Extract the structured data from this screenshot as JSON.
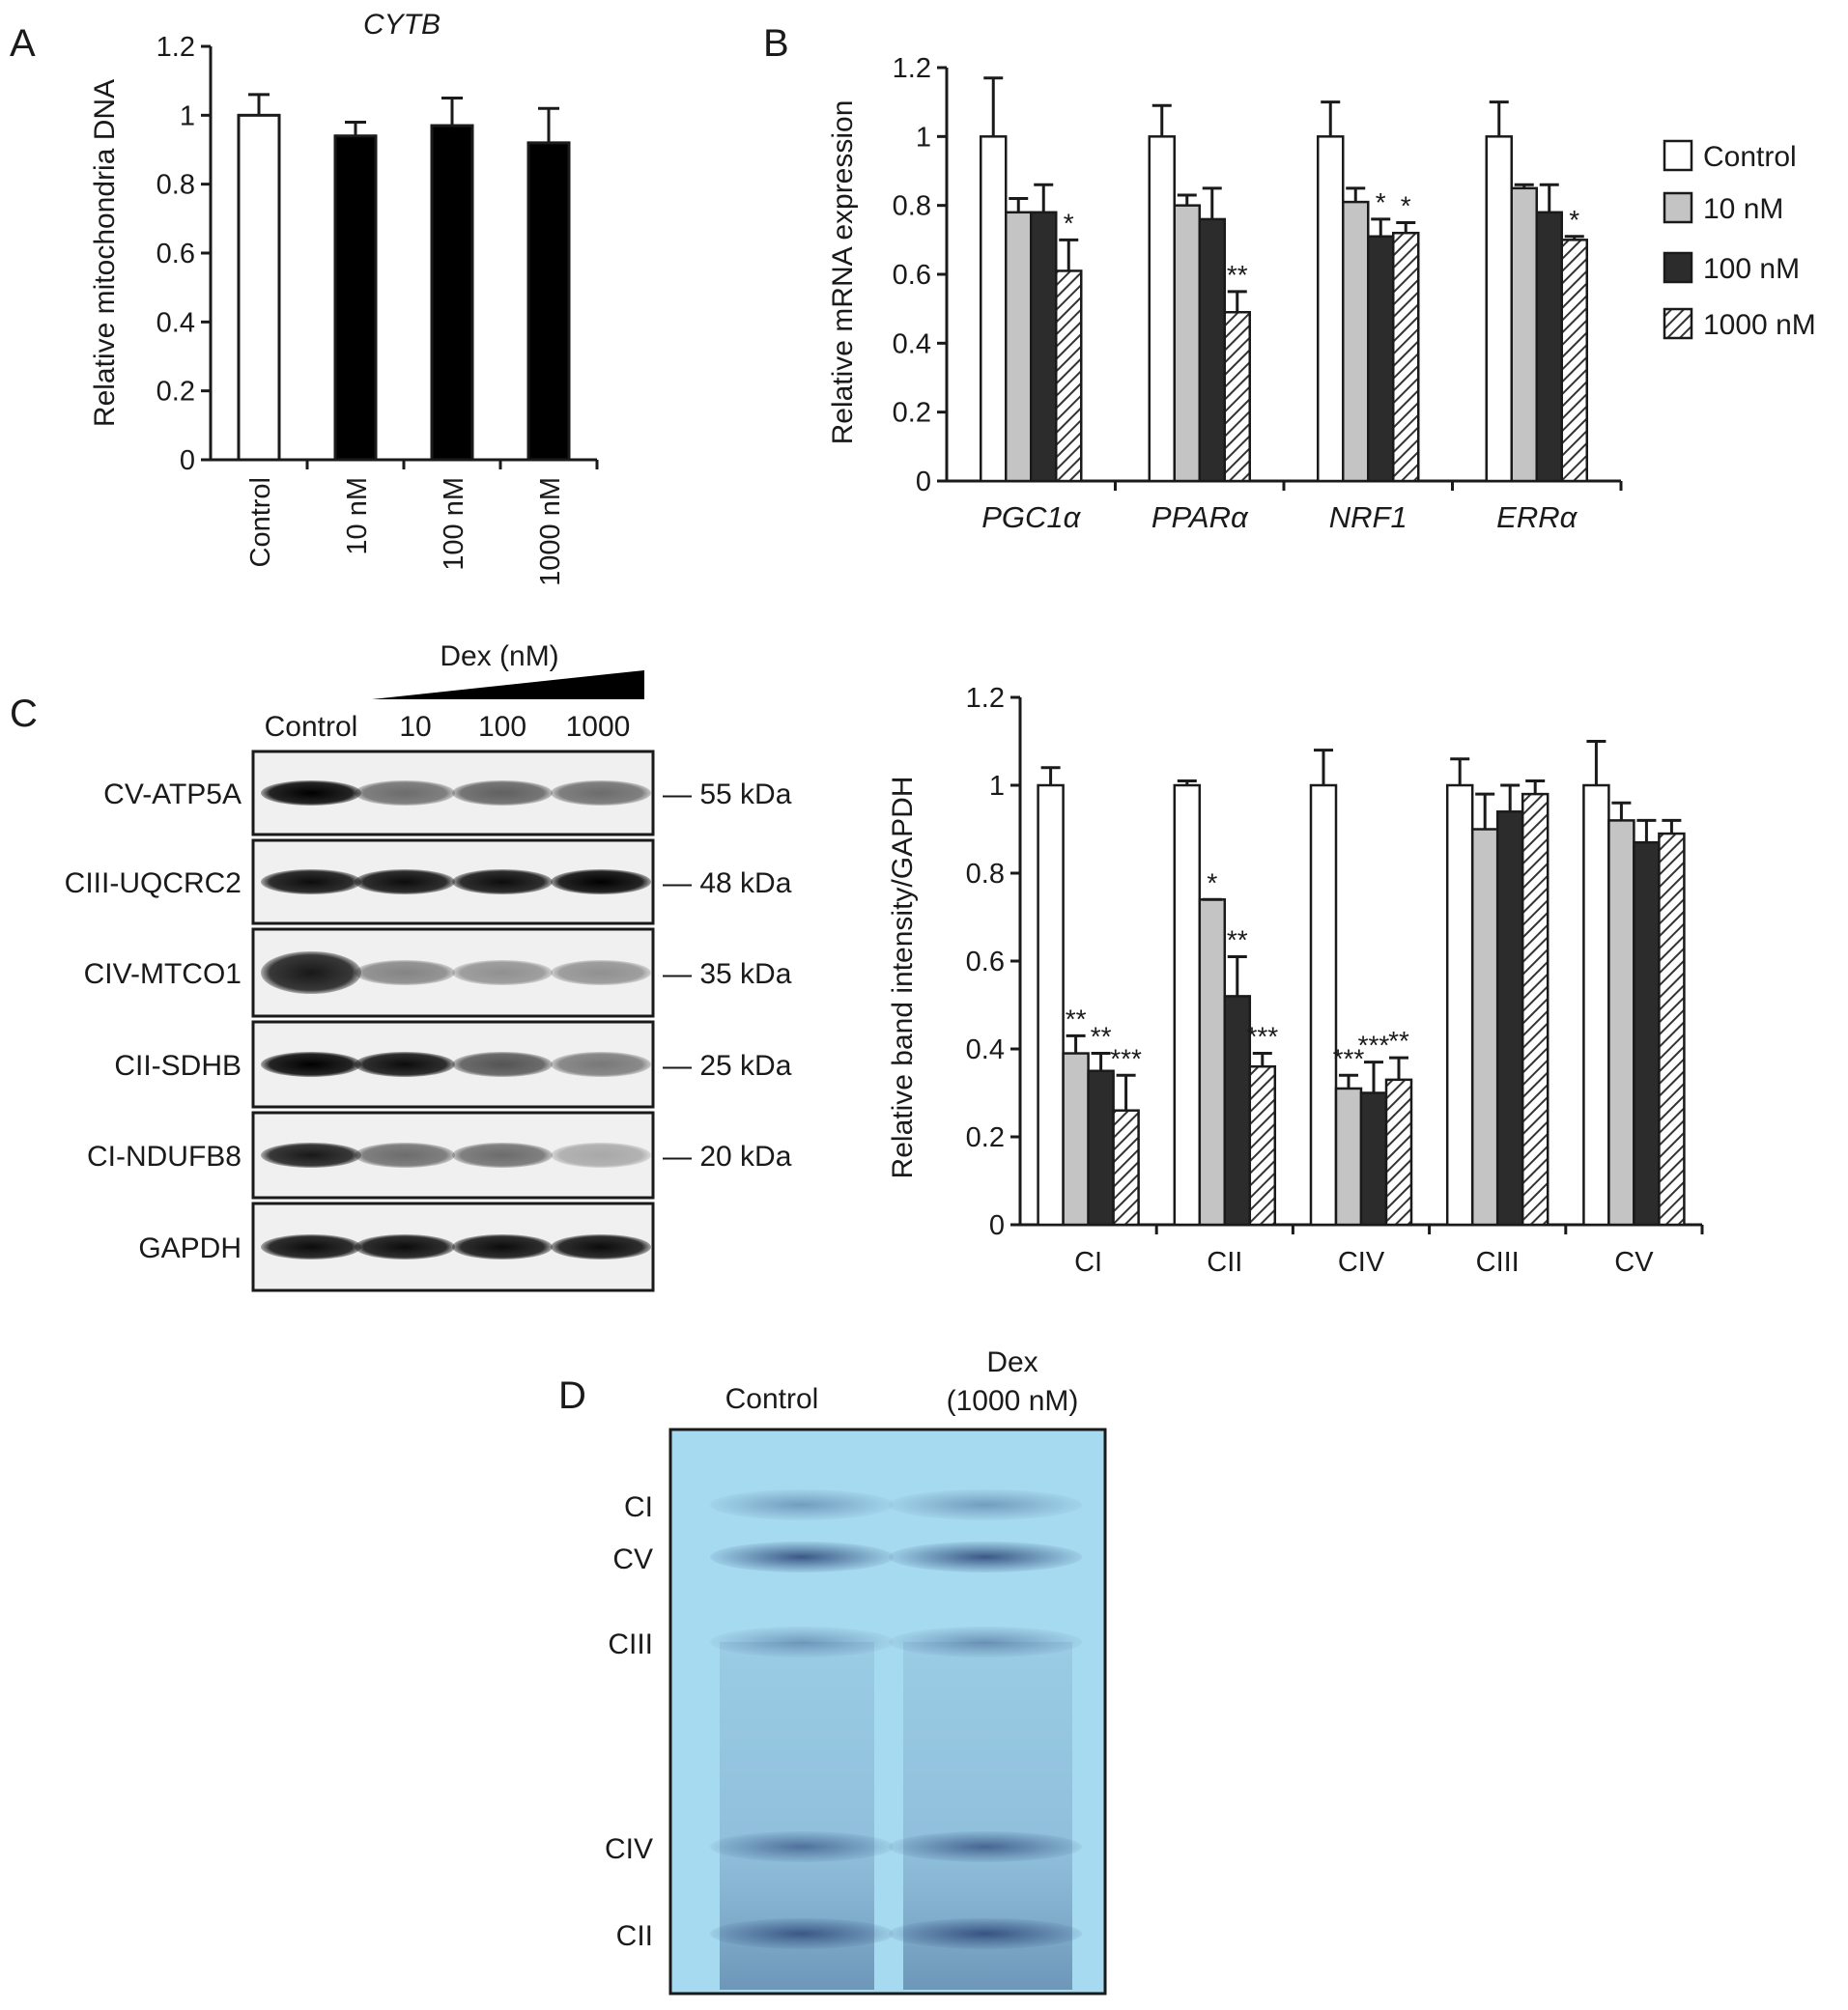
{
  "colors": {
    "control": "#ffffff",
    "10 nM": "#c4c4c4",
    "100 nM": "#2c2c2c",
    "1000 nM": "hatch",
    "black_bar": "#000000",
    "axis": "#1a1a1a",
    "gel_bg": "#a6daf0",
    "gel_band": "#2f4a7a"
  },
  "legend": [
    "Control",
    "10 nM",
    "100 nM",
    "1000 nM"
  ],
  "chart_data": [
    {
      "panel": "A",
      "type": "bar",
      "title": "CYTB",
      "ylabel": "Relative mitochondria DNA",
      "xlabel": "",
      "categories": [
        "Control",
        "10 nM",
        "100 nM",
        "1000 nM"
      ],
      "values": [
        1.0,
        0.94,
        0.97,
        0.92
      ],
      "errors": [
        0.06,
        0.04,
        0.08,
        0.1
      ],
      "fills": [
        "control",
        "black_bar",
        "black_bar",
        "black_bar"
      ],
      "ylim": [
        0,
        1.2
      ],
      "yticks": [
        "0",
        "0.2",
        "0.4",
        "0.6",
        "0.8",
        "1",
        "1.2"
      ],
      "grid": false
    },
    {
      "panel": "B",
      "type": "bar",
      "title": "",
      "ylabel": "Relative mRNA expression",
      "xlabel": "",
      "categories": [
        "PGC1α",
        "PPARα",
        "NRF1",
        "ERRα"
      ],
      "series": [
        {
          "name": "Control",
          "values": [
            1.0,
            1.0,
            1.0,
            1.0
          ],
          "errors": [
            0.17,
            0.09,
            0.1,
            0.1
          ],
          "sig": [
            "",
            "",
            "",
            ""
          ]
        },
        {
          "name": "10 nM",
          "values": [
            0.78,
            0.8,
            0.81,
            0.85
          ],
          "errors": [
            0.04,
            0.03,
            0.04,
            0.01
          ],
          "sig": [
            "",
            "",
            "",
            ""
          ]
        },
        {
          "name": "100 nM",
          "values": [
            0.78,
            0.76,
            0.71,
            0.78
          ],
          "errors": [
            0.08,
            0.09,
            0.05,
            0.08
          ],
          "sig": [
            "",
            "",
            "*",
            ""
          ]
        },
        {
          "name": "1000 nM",
          "values": [
            0.61,
            0.49,
            0.72,
            0.7
          ],
          "errors": [
            0.09,
            0.06,
            0.03,
            0.01
          ],
          "sig": [
            "*",
            "**",
            "*",
            "*"
          ]
        }
      ],
      "ylim": [
        0,
        1.2
      ],
      "yticks": [
        "0",
        "0.2",
        "0.4",
        "0.6",
        "0.8",
        "1",
        "1.2"
      ],
      "legend_position": "right",
      "grid": false
    },
    {
      "panel": "C",
      "type": "bar",
      "title": "",
      "ylabel": "Relative band intensity/GAPDH",
      "xlabel": "",
      "categories": [
        "CI",
        "CII",
        "CIV",
        "CIII",
        "CV"
      ],
      "series": [
        {
          "name": "Control",
          "values": [
            1.0,
            1.0,
            1.0,
            1.0,
            1.0
          ],
          "errors": [
            0.04,
            0.01,
            0.08,
            0.06,
            0.1
          ],
          "sig": [
            "",
            "",
            "",
            "",
            ""
          ]
        },
        {
          "name": "10 nM",
          "values": [
            0.39,
            0.74,
            0.31,
            0.9,
            0.92
          ],
          "errors": [
            0.04,
            0.0,
            0.03,
            0.08,
            0.04
          ],
          "sig": [
            "**",
            "*",
            "***",
            "",
            ""
          ]
        },
        {
          "name": "100 nM",
          "values": [
            0.35,
            0.52,
            0.3,
            0.94,
            0.87
          ],
          "errors": [
            0.04,
            0.09,
            0.07,
            0.06,
            0.05
          ],
          "sig": [
            "**",
            "**",
            "***",
            "",
            ""
          ]
        },
        {
          "name": "1000 nM",
          "values": [
            0.26,
            0.36,
            0.33,
            0.98,
            0.89
          ],
          "errors": [
            0.08,
            0.03,
            0.05,
            0.03,
            0.03
          ],
          "sig": [
            "***",
            "***",
            "**",
            "",
            ""
          ]
        }
      ],
      "ylim": [
        0,
        1.2
      ],
      "yticks": [
        "0",
        "0.2",
        "0.4",
        "0.6",
        "0.8",
        "1",
        "1.2"
      ],
      "grid": false
    }
  ],
  "panelA": {
    "letter": "A"
  },
  "panelB": {
    "letter": "B"
  },
  "panelC": {
    "letter": "C",
    "dex_label": "Dex (nM)",
    "lanes": [
      "Control",
      "10",
      "100",
      "1000"
    ],
    "blots": [
      {
        "protein": "CV-ATP5A",
        "kda": "— 55 kDa",
        "band_intensity": [
          1.0,
          0.55,
          0.6,
          0.55
        ]
      },
      {
        "protein": "CIII-UQCRC2",
        "kda": "— 48 kDa",
        "band_intensity": [
          0.95,
          0.95,
          0.95,
          1.0
        ]
      },
      {
        "protein": "CIV-MTCO1",
        "kda": "— 35 kDa",
        "band_intensity": [
          0.9,
          0.45,
          0.4,
          0.4
        ]
      },
      {
        "protein": "CII-SDHB",
        "kda": "— 25 kDa",
        "band_intensity": [
          1.0,
          0.95,
          0.65,
          0.5
        ]
      },
      {
        "protein": "CI-NDUFB8",
        "kda": "— 20 kDa",
        "band_intensity": [
          0.9,
          0.55,
          0.55,
          0.3
        ]
      },
      {
        "protein": "GAPDH",
        "kda": "",
        "band_intensity": [
          0.95,
          0.95,
          0.95,
          0.95
        ]
      }
    ]
  },
  "panelD": {
    "letter": "D",
    "lane1": "Control",
    "lane2_line1": "Dex",
    "lane2_line2": "(1000 nM)",
    "bands": [
      "CI",
      "CV",
      "CIII",
      "CIV",
      "CII"
    ]
  }
}
